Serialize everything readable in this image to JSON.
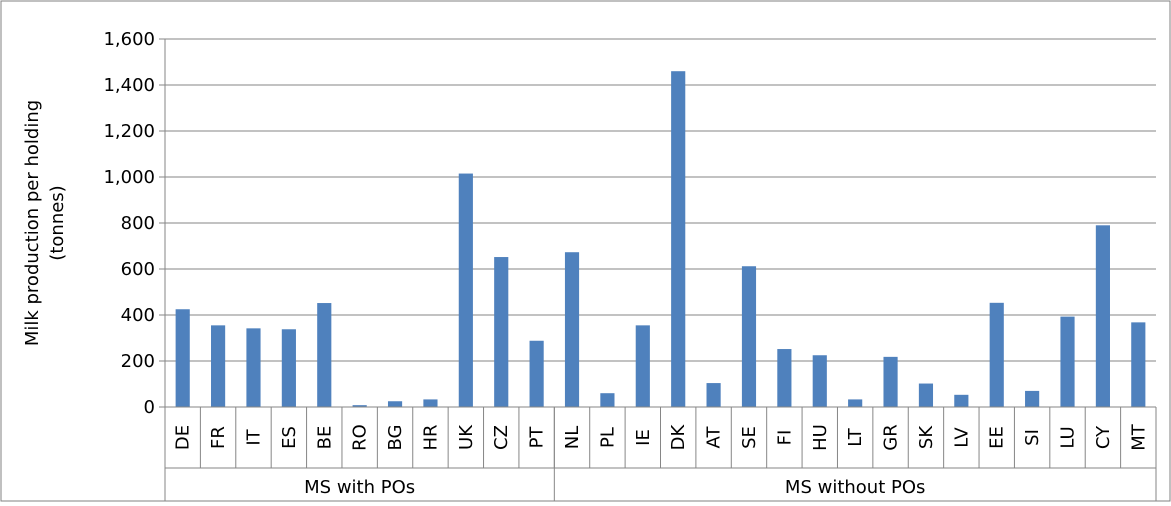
{
  "chart_data": {
    "type": "bar",
    "title": "",
    "xlabel": "",
    "ylabel_line1": "Milk production per holding",
    "ylabel_line2": "(tonnes)",
    "ylim": [
      0,
      1600
    ],
    "yticks": [
      0,
      200,
      400,
      600,
      800,
      1000,
      1200,
      1400,
      1600
    ],
    "ytick_labels": [
      "0",
      "200",
      "400",
      "600",
      "800",
      "1,000",
      "1,200",
      "1,400",
      "1,600"
    ],
    "grid": true,
    "bar_color": "#4F81BD",
    "categories": [
      "DE",
      "FR",
      "IT",
      "ES",
      "BE",
      "RO",
      "BG",
      "HR",
      "UK",
      "CZ",
      "PT",
      "NL",
      "PL",
      "IE",
      "DK",
      "AT",
      "SE",
      "FI",
      "HU",
      "LT",
      "GR",
      "SK",
      "LV",
      "EE",
      "SI",
      "LU",
      "CY",
      "MT"
    ],
    "values": [
      425,
      355,
      342,
      338,
      452,
      8,
      25,
      33,
      1015,
      652,
      288,
      673,
      60,
      355,
      1460,
      104,
      612,
      252,
      225,
      33,
      218,
      102,
      53,
      453,
      70,
      393,
      790,
      368
    ],
    "groups": [
      {
        "label": "MS with POs",
        "count": 11
      },
      {
        "label": "MS without POs",
        "count": 17
      }
    ]
  }
}
